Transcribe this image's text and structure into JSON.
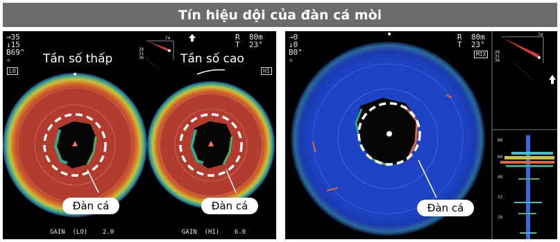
{
  "title": "Tín hiệu dội của đàn cá mòi",
  "callout_label": "Đàn cá",
  "left_panel": {
    "readout_lines": [
      "→35",
      "↓15",
      "B69°",
      "✧"
    ],
    "range": "R  80m",
    "tilt": "T  23°",
    "mini_values": [
      "74",
      "26",
      "31",
      "36"
    ],
    "low_freq_label": "Tần số thấp",
    "high_freq_label": "Tần số cao",
    "lo_badge": "LO",
    "hi_badge": "HI",
    "gain_lo": "GAIN  (LO)    2.0",
    "gain_hi": "GAIN  (HI)    6.0"
  },
  "right_panel": {
    "readout_lines": [
      "→0",
      "↓0",
      "B0°",
      "✧"
    ],
    "range": "R  80m",
    "tilt": "T  23°",
    "mix_badge": "MIX",
    "mini_values": [
      "74",
      "26",
      "31",
      "36"
    ],
    "depth_scale": [
      "88",
      "64",
      "48",
      "32",
      "16"
    ]
  },
  "colors": {
    "title_bar": "#6b6b6b",
    "sonar_red": "#b03a2e",
    "sonar_blue": "#1f45c8"
  }
}
